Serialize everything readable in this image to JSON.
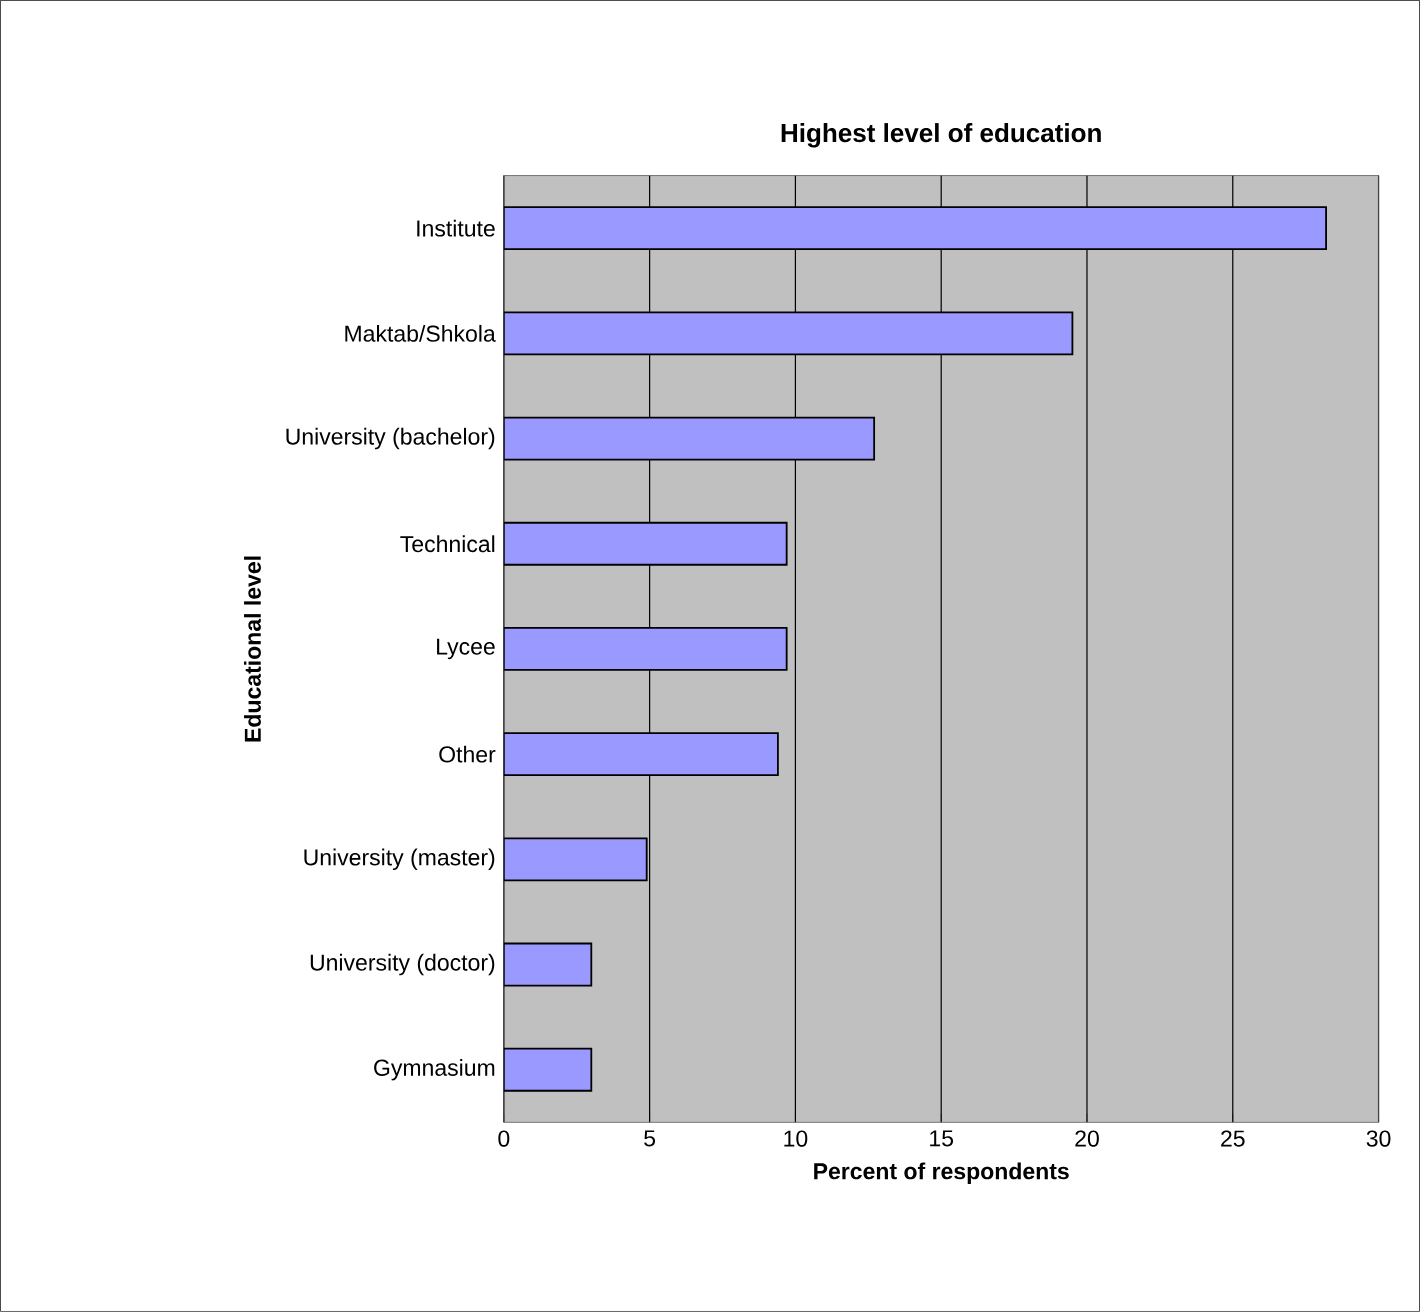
{
  "chart_data": {
    "type": "bar",
    "orientation": "horizontal",
    "title": "Highest level of education",
    "xlabel": "Percent of respondents",
    "ylabel": "Educational level",
    "categories": [
      "Institute",
      "Maktab/Shkola",
      "University (bachelor)",
      "Technical",
      "Lycee",
      "Other",
      "University (master)",
      "University (doctor)",
      "Gymnasium"
    ],
    "values": [
      28.2,
      19.5,
      12.7,
      9.7,
      9.7,
      9.4,
      4.9,
      3.0,
      3.0
    ],
    "color": "#9999ff",
    "xlim": [
      0,
      30
    ],
    "xticks": [
      0,
      5,
      10,
      15,
      20,
      25,
      30
    ],
    "grid": "x"
  }
}
